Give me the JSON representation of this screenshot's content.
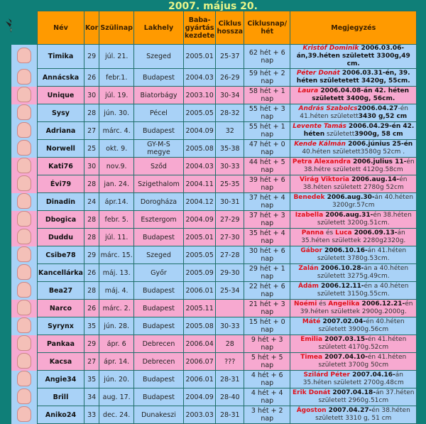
{
  "title": "2007. május 20.",
  "colors": {
    "background": "#0f7f78",
    "header": "#ff9a00",
    "boy_row": "#a9d2f7",
    "girl_row": "#f7a9d0",
    "baby_name": "#e0101a",
    "title": "#e8f58a"
  },
  "icons": {
    "header": "stork-icon",
    "rows": "baby-icon"
  },
  "columns": [
    "Név",
    "Kor",
    "Szülinap",
    "Lakhely",
    "Baba-gyártás kezdete",
    "Ciklus hossza",
    "Ciklusnap/ hét",
    "Megjegyzés"
  ],
  "rows": [
    {
      "gender": "b",
      "name": "Timika",
      "age": "29",
      "birthday": "júl. 21.",
      "city": "Szeged",
      "start": "2005.01",
      "cycle": "25-37",
      "week": "62 hét + 6 nap",
      "note": [
        {
          "t": "Kristóf Dominik",
          "s": "ri"
        },
        {
          "t": " 2006.03.06-án,39.héten született 3300g,49 cm.",
          "s": "b"
        }
      ]
    },
    {
      "gender": "b",
      "name": "Annácska",
      "age": "26",
      "birthday": "febr.1.",
      "city": "Budapest",
      "start": "2004.03",
      "cycle": "26-29",
      "week": "59 hét + 2 nap",
      "note": [
        {
          "t": "Péter Donát",
          "s": "ri"
        },
        {
          "t": " 2006.03.31-én, 39. héten születetett 3420g, 55cm.",
          "s": "b"
        }
      ]
    },
    {
      "gender": "g",
      "name": "Unique",
      "age": "30",
      "birthday": "júl. 19.",
      "city": "Biatorbágy",
      "start": "2003.10",
      "cycle": "30-34",
      "week": "58 hét + 1 nap",
      "note": [
        {
          "t": "Laura",
          "s": "ri"
        },
        {
          "t": " 2006.04.08-án 42. héten született 3400g, 56cm.",
          "s": "b"
        }
      ]
    },
    {
      "gender": "b",
      "name": "Sysy",
      "age": "28",
      "birthday": "jún. 30.",
      "city": "Pécel",
      "start": "2005.05",
      "cycle": "28-32",
      "week": "55 hét + 3 nap",
      "note": [
        {
          "t": "András Szabolcs",
          "s": "ri"
        },
        {
          "t": "2006.04.27",
          "s": "b"
        },
        {
          "t": "-én 41.héten született",
          "s": "n"
        },
        {
          "t": "3430 g,52 cm",
          "s": "b"
        }
      ]
    },
    {
      "gender": "b",
      "name": "Adriana",
      "age": "27",
      "birthday": "márc. 4.",
      "city": "Budapest",
      "start": "2004.09",
      "cycle": "32",
      "week": "55 hét + 1 nap",
      "note": [
        {
          "t": "Levente Tamás",
          "s": "ri"
        },
        {
          "t": " 2006.04.29-én 42. héten",
          "s": "b"
        },
        {
          "t": " született",
          "s": "n"
        },
        {
          "t": "3900g, 58 cm",
          "s": "b"
        }
      ]
    },
    {
      "gender": "b",
      "name": "Norwell",
      "age": "25",
      "birthday": "okt. 9.",
      "city": "GY-M-S megye",
      "start": "2005.08",
      "cycle": "35-38",
      "week": "47 hét + 0 nap",
      "note": [
        {
          "t": "Kende Kálmán",
          "s": "ri"
        },
        {
          "t": " 2006.június 25-én",
          "s": "b"
        },
        {
          "t": " 40.héten született3580g 52cm .",
          "s": "n"
        }
      ]
    },
    {
      "gender": "g",
      "name": "Kati76",
      "age": "30",
      "birthday": "nov.9.",
      "city": "Sződ",
      "start": "2004.03",
      "cycle": "30-33",
      "week": "44 hét + 5 nap",
      "note": [
        {
          "t": "Petra Alexandra",
          "s": "r"
        },
        {
          "t": " 2006.julius 11-",
          "s": "b"
        },
        {
          "t": "én 38.hétre született 4120g.58cm",
          "s": "n"
        }
      ]
    },
    {
      "gender": "g",
      "name": "Évi79",
      "age": "28",
      "birthday": "jan. 24.",
      "city": "Szigethalom",
      "start": "2004.11",
      "cycle": "25-35",
      "week": "39 hét + 6 nap",
      "note": [
        {
          "t": "Virág Viktoria",
          "s": "r"
        },
        {
          "t": " 2006.aug.14-",
          "s": "b"
        },
        {
          "t": "én 38.héten született 2780g 52cm",
          "s": "n"
        }
      ]
    },
    {
      "gender": "b",
      "name": "Dinadin",
      "age": "24",
      "birthday": "ápr.14.",
      "city": "Dorogháza",
      "start": "2004.12",
      "cycle": "30-31",
      "week": "37 hét + 4 nap",
      "note": [
        {
          "t": "Benedek",
          "s": "r"
        },
        {
          "t": " 2006.aug.30-",
          "s": "b"
        },
        {
          "t": "án 40.héten 3200gr.57cm",
          "s": "n"
        }
      ]
    },
    {
      "gender": "g",
      "name": "Dbogica",
      "age": "28",
      "birthday": "febr. 5.",
      "city": "Esztergom",
      "start": "2004.09",
      "cycle": "27-29",
      "week": "37 hét + 3 nap",
      "note": [
        {
          "t": "Izabella",
          "s": "r"
        },
        {
          "t": " 2006.aug.31-",
          "s": "b"
        },
        {
          "t": "én 38.héten született 3200g.51cm.",
          "s": "n"
        }
      ]
    },
    {
      "gender": "g",
      "name": "Duddu",
      "age": "28",
      "birthday": "júl. 11.",
      "city": "Budapest",
      "start": "2005.01",
      "cycle": "27-30",
      "week": "35 hét + 4 nap",
      "note": [
        {
          "t": "Panna",
          "s": "r"
        },
        {
          "t": " és ",
          "s": "n"
        },
        {
          "t": "Luca",
          "s": "r"
        },
        {
          "t": " 2006.09.13-",
          "s": "b"
        },
        {
          "t": "án 35.héten születtek 2280g2320g.",
          "s": "n"
        }
      ]
    },
    {
      "gender": "b",
      "name": "Csibe78",
      "age": "29",
      "birthday": "márc. 15.",
      "city": "Szeged",
      "start": "2005.05",
      "cycle": "27-28",
      "week": "30 hét + 6 nap",
      "note": [
        {
          "t": "Gábor",
          "s": "r"
        },
        {
          "t": " 2006.10.16-",
          "s": "b"
        },
        {
          "t": "án 41.héten született 3780g.53cm.",
          "s": "n"
        }
      ]
    },
    {
      "gender": "b",
      "name": "Kancellárka",
      "age": "26",
      "birthday": "máj. 13.",
      "city": "Győr",
      "start": "2005.09",
      "cycle": "29-30",
      "week": "29 hét + 1 nap",
      "note": [
        {
          "t": "Zalán",
          "s": "r"
        },
        {
          "t": " 2006.10.28-",
          "s": "b"
        },
        {
          "t": "án a 40.héten született 3275g.49cm.",
          "s": "n"
        }
      ]
    },
    {
      "gender": "b",
      "name": "Bea27",
      "age": "28",
      "birthday": "máj. 4.",
      "city": "Budapest",
      "start": "2006.01",
      "cycle": "25-34",
      "week": "22 hét + 6 nap",
      "note": [
        {
          "t": "Ádám",
          "s": "r"
        },
        {
          "t": " 2006.12.11-",
          "s": "b"
        },
        {
          "t": "én a 40.héten született 3150g.55cm.",
          "s": "n"
        }
      ]
    },
    {
      "gender": "g",
      "name": "Narco",
      "age": "26",
      "birthday": "márc. 2.",
      "city": "Budapest",
      "start": "2005.11",
      "cycle": "",
      "week": "21 hét + 3 nap",
      "note": [
        {
          "t": "Noémi",
          "s": "r"
        },
        {
          "t": " és ",
          "s": "n"
        },
        {
          "t": "Angelika",
          "s": "r"
        },
        {
          "t": " 2006.12.21-",
          "s": "b"
        },
        {
          "t": "én 39.héten születtek 2900g.2000g.",
          "s": "n"
        }
      ]
    },
    {
      "gender": "b",
      "name": "Syrynx",
      "age": "35",
      "birthday": "jún. 28.",
      "city": "Budapest",
      "start": "2005.08",
      "cycle": "30-33",
      "week": "15 hét + 0 nap",
      "note": [
        {
          "t": "Máté",
          "s": "r"
        },
        {
          "t": " 2007.02.04-",
          "s": "b"
        },
        {
          "t": "én 40.héten született 3900g.56cm",
          "s": "n"
        }
      ]
    },
    {
      "gender": "g",
      "name": "Pankaa",
      "age": "29",
      "birthday": "ápr. 6",
      "city": "Debrecen",
      "start": "2006.04",
      "cycle": "28",
      "week": "9 hét + 3 nap",
      "note": [
        {
          "t": "Emilia",
          "s": "r"
        },
        {
          "t": " 2007.03.15-",
          "s": "b"
        },
        {
          "t": "én 41.héten született 4170g.52cm",
          "s": "n"
        }
      ]
    },
    {
      "gender": "g",
      "name": "Kacsa",
      "age": "27",
      "birthday": "ápr. 14.",
      "city": "Debrecen",
      "start": "2006.07",
      "cycle": "???",
      "week": "5 hét + 5 nap",
      "note": [
        {
          "t": "Timea",
          "s": "r"
        },
        {
          "t": " 2007.04.10-",
          "s": "b"
        },
        {
          "t": "én 41.héten született 3700g 50cm",
          "s": "n"
        }
      ]
    },
    {
      "gender": "b",
      "name": "Angie34",
      "age": "35",
      "birthday": "jún. 20.",
      "city": "Budapest",
      "start": "2006.01",
      "cycle": "28-31",
      "week": "4 hét + 6 nap",
      "note": [
        {
          "t": "Szilárd Péter",
          "s": "r"
        },
        {
          "t": " 2007.04.16-",
          "s": "b"
        },
        {
          "t": "án 35.héten született 2700g.48cm",
          "s": "n"
        }
      ]
    },
    {
      "gender": "b",
      "name": "Brill",
      "age": "34",
      "birthday": "aug. 17.",
      "city": "Budapest",
      "start": "2004.09",
      "cycle": "28-40",
      "week": "4 hét + 4 nap",
      "note": [
        {
          "t": "Erik Donát",
          "s": "r"
        },
        {
          "t": " 2007.04.18-",
          "s": "b"
        },
        {
          "t": "án 37.héten született 2960g.51cm",
          "s": "n"
        }
      ]
    },
    {
      "gender": "b",
      "name": "Aniko24",
      "age": "33",
      "birthday": "dec. 24.",
      "city": "Dunakeszi",
      "start": "2003.03",
      "cycle": "28-31",
      "week": "3 hét + 2 nap",
      "note": [
        {
          "t": "Ágoston",
          "s": "r"
        },
        {
          "t": " 2007.04.27-",
          "s": "b"
        },
        {
          "t": "én 38.héten született 3310 g, 51 cm",
          "s": "n"
        }
      ]
    }
  ]
}
